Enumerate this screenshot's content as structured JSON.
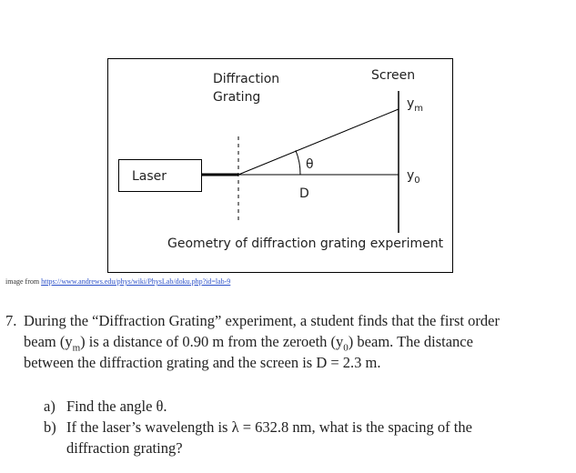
{
  "diagram": {
    "labels": {
      "grating": [
        "Diffraction",
        "Grating"
      ],
      "screen": "Screen",
      "ym": {
        "base": "y",
        "sub": "m"
      },
      "theta": "θ",
      "laser": "Laser",
      "y0": {
        "base": "y",
        "sub": "0"
      },
      "distance": "D"
    },
    "caption": "Geometry of diffraction grating experiment"
  },
  "source": {
    "prefix": "image from",
    "url": "https://www.andrews.edu/phys/wiki/PhysLab/doku.php?id=lab-9"
  },
  "question": {
    "number": "7.",
    "lines": [
      [
        {
          "text": "During the “Diffraction Grating” experiment, a student finds that the first order"
        }
      ],
      [
        {
          "text": "beam (y"
        },
        {
          "sub": "m"
        },
        {
          "text": ") is a distance of 0.90 m from the zeroeth (y"
        },
        {
          "sub": "0"
        },
        {
          "text": ") beam. The distance"
        }
      ],
      [
        {
          "text": "between the diffraction grating and the screen is D = 2.3 m."
        }
      ]
    ]
  },
  "parts": [
    {
      "label": "a)",
      "lines": [
        [
          {
            "text": "Find the angle θ."
          }
        ]
      ]
    },
    {
      "label": "b)",
      "lines": [
        [
          {
            "text": "If the laser’s wavelength is λ = 632.8 nm, what is the spacing of the"
          }
        ],
        [
          {
            "text": "diffraction grating?"
          }
        ]
      ]
    }
  ]
}
